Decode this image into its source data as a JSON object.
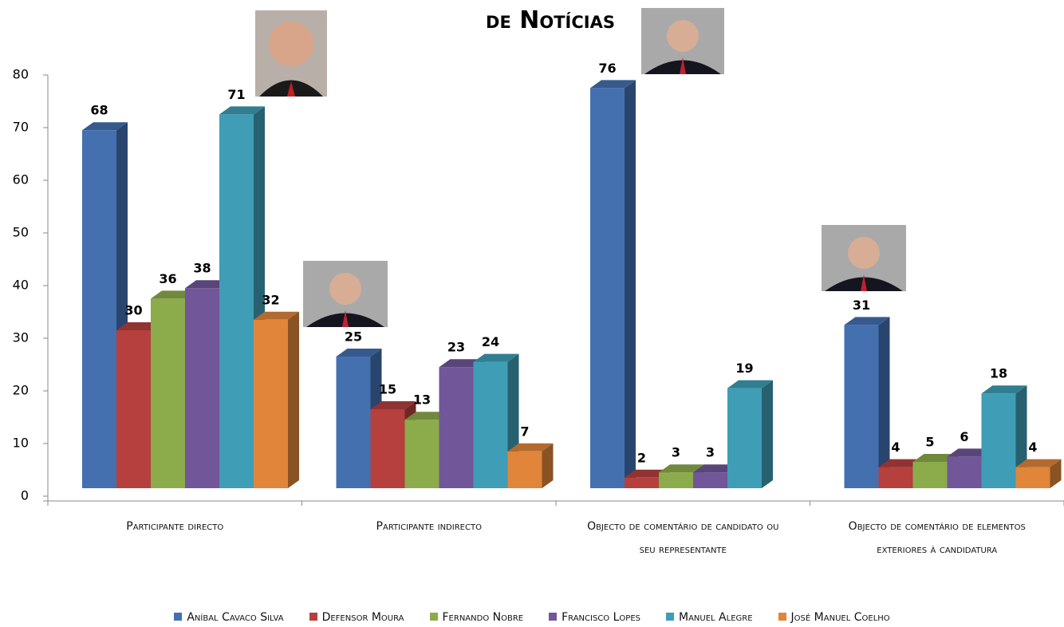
{
  "chart_data": {
    "type": "bar3d",
    "title": "de Notícias",
    "categories": [
      "Participante directo",
      "Participante indirecto",
      "Objecto de comentário de candidato ou seu representante",
      "Objecto de comentário de elementos exteriores à candidatura"
    ],
    "series": [
      {
        "name": "Aníbal Cavaco Silva",
        "color": "#4470b0",
        "values": [
          68,
          25,
          76,
          31
        ]
      },
      {
        "name": "Defensor Moura",
        "color": "#b5403e",
        "values": [
          30,
          15,
          2,
          4
        ]
      },
      {
        "name": "Fernando Nobre",
        "color": "#8cab4b",
        "values": [
          36,
          13,
          3,
          5
        ]
      },
      {
        "name": "Francisco Lopes",
        "color": "#71569a",
        "values": [
          38,
          23,
          3,
          6
        ]
      },
      {
        "name": "Manuel Alegre",
        "color": "#3f9db5",
        "values": [
          71,
          24,
          19,
          18
        ]
      },
      {
        "name": "José Manuel Coelho",
        "color": "#e0853a",
        "values": [
          32,
          7,
          null,
          4
        ]
      }
    ],
    "ylim": [
      0,
      80
    ],
    "yticks": [
      0,
      10,
      20,
      30,
      40,
      50,
      60,
      70,
      80
    ]
  }
}
